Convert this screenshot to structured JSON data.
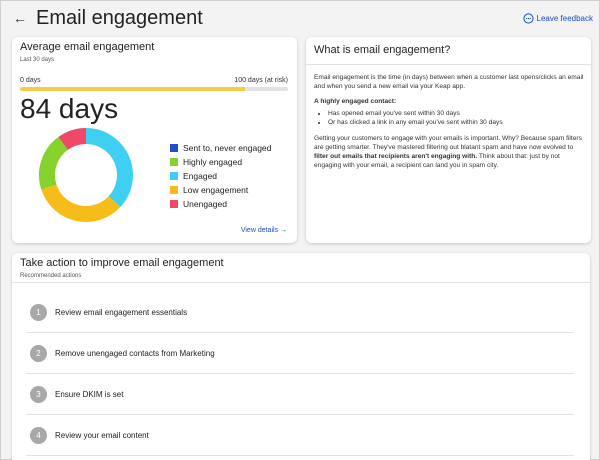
{
  "header": {
    "title": "Email engagement",
    "feedback_label": "Leave feedback"
  },
  "colors": {
    "sent_never_engaged": "#1f4fc9",
    "highly_engaged": "#86d12b",
    "engaged": "#3fcff2",
    "low_engagement": "#f6bd1a",
    "unengaged": "#ee4a67",
    "progress_fill": "#f2cd4a",
    "link": "#1a4fbf"
  },
  "average": {
    "title": "Average email engagement",
    "subtitle": "Last 30 days",
    "range_min_label": "0 days",
    "range_max_label": "100 days (at risk)",
    "progress_fraction": 0.84,
    "value_label": "84 days",
    "legend": [
      {
        "label": "Sent to, never engaged"
      },
      {
        "label": "Highly engaged"
      },
      {
        "label": "Engaged"
      },
      {
        "label": "Low engagement"
      },
      {
        "label": "Unengaged"
      }
    ],
    "view_details_label": "View details →"
  },
  "chart_data": {
    "type": "pie",
    "donut": true,
    "categories": [
      "Sent to, never engaged",
      "Highly engaged",
      "Engaged",
      "Low engagement",
      "Unengaged"
    ],
    "values": [
      0,
      20,
      37,
      33,
      10
    ],
    "colors": [
      "#1f4fc9",
      "#86d12b",
      "#3fcff2",
      "#f6bd1a",
      "#ee4a67"
    ],
    "legend_position": "right"
  },
  "what": {
    "title": "What is email engagement?",
    "p1": "Email engagement is the time (in days) between when a customer last opens/clicks an email and when you send a new email via your Keap app.",
    "highly_heading": "A highly engaged contact:",
    "bullets": [
      "Has opened email you've sent within 30 days",
      "Or has clicked a link in any email you've sent within 30 days"
    ],
    "p2_start": "Getting your customers to engage with your emails is important. Why? Because spam filters are getting smarter. They've mastered filtering out blatant spam and have now evolved to ",
    "p2_bold": "filter out emails that recipients aren't engaging with.",
    "p2_end": " Think about that: just by not engaging with your email, a recipient can land you in spam city."
  },
  "take_action": {
    "title": "Take action to improve email engagement",
    "subtitle": "Recommended actions",
    "actions": [
      {
        "num": "1",
        "label": "Review email engagement essentials"
      },
      {
        "num": "2",
        "label": "Remove unengaged contacts from Marketing"
      },
      {
        "num": "3",
        "label": "Ensure DKIM is set"
      },
      {
        "num": "4",
        "label": "Review your email content"
      }
    ]
  }
}
